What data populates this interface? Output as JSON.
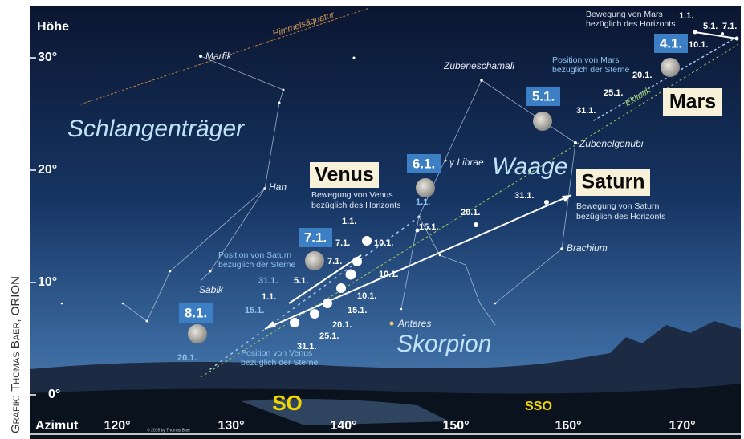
{
  "credit": "Grafik: Thomas Baer, ORION",
  "copyright": "© 2015 by Thomas Baer",
  "axes": {
    "altitude_title": "Höhe",
    "altitude_labels": [
      "30°",
      "20°",
      "10°",
      "0°"
    ],
    "azimuth_title": "Azimut",
    "azimuth_labels": [
      "120°",
      "130°",
      "140°",
      "150°",
      "160°",
      "170°"
    ]
  },
  "directions": [
    "SO",
    "SSO"
  ],
  "lines": [
    "Himmelsäquator",
    "Ekliptik"
  ],
  "stars": [
    "Marfik",
    "Han",
    "Sabik",
    "Zubeneschamali",
    "Zubenelgenubi",
    "γ Librae",
    "Brachium",
    "Antares"
  ],
  "constellations": [
    "Schlangenträger",
    "Waage",
    "Skorpion"
  ],
  "planets": [
    {
      "name": "Venus",
      "horizon_motion": [
        "Bewegung von Venus",
        "bezüglich des Horizonts"
      ],
      "star_position": [
        "Position von Venus",
        "bezüglich der Sterne"
      ]
    },
    {
      "name": "Saturn",
      "horizon_motion": [
        "Bewegung von Saturn",
        "bezüglich des Horizonts"
      ],
      "star_position": [
        "Position von Saturn",
        "bezüglich der Sterne"
      ]
    },
    {
      "name": "Mars",
      "horizon_motion": [
        "Bewegung von Mars",
        "bezüglich des Horizonts"
      ],
      "star_position": [
        "Position von Mars",
        "bezüglich der Sterne"
      ]
    }
  ],
  "moon_dates": [
    "8.1.",
    "7.1.",
    "6.1.",
    "5.1.",
    "4.1."
  ],
  "date_labels": [
    "1.1.",
    "5.1.",
    "7.1.",
    "10.1.",
    "20.1.",
    "25.1.",
    "31.1.",
    "31.1.",
    "20.1.",
    "1.1.",
    "15.1.",
    "10.1.",
    "1.1.",
    "7.1.",
    "7.1.",
    "10.1.",
    "10.1.",
    "15.1.",
    "20.1.",
    "25.1.",
    "31.1.",
    "5.1.",
    "1.1.",
    "31.1.",
    "15.1.",
    "20.1."
  ]
}
